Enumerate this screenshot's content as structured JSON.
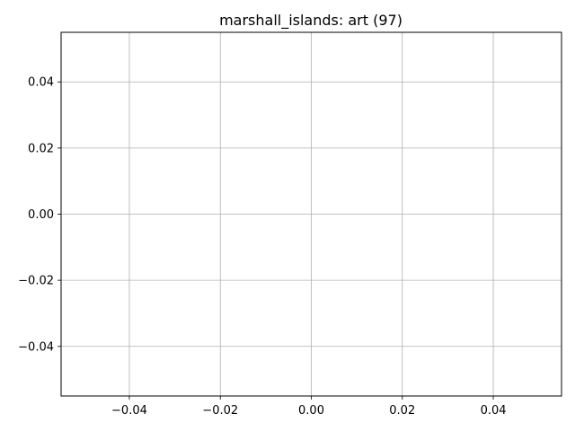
{
  "chart_data": {
    "type": "line",
    "title": "marshall_islands: art (97)",
    "xlabel": "",
    "ylabel": "",
    "series": [],
    "xlim": [
      -0.055,
      0.055
    ],
    "ylim": [
      -0.055,
      0.055
    ],
    "xticks": [
      -0.04,
      -0.02,
      0.0,
      0.02,
      0.04
    ],
    "xtick_labels": [
      "−0.04",
      "−0.02",
      "0.00",
      "0.02",
      "0.04"
    ],
    "yticks": [
      -0.04,
      -0.02,
      0.0,
      0.02,
      0.04
    ],
    "ytick_labels": [
      "−0.04",
      "−0.02",
      "0.00",
      "0.02",
      "0.04"
    ],
    "grid": true,
    "colors": {
      "grid": "#b0b0b0",
      "axis": "#000000",
      "background": "#ffffff"
    }
  }
}
